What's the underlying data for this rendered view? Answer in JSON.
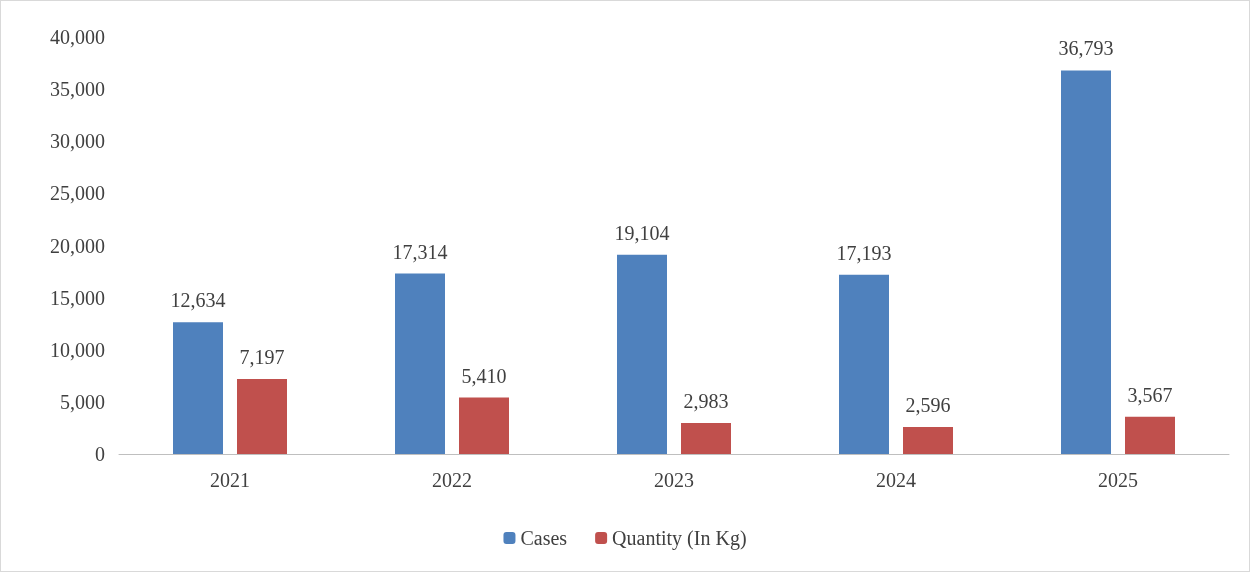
{
  "chart_data": {
    "type": "bar",
    "categories": [
      "2021",
      "2022",
      "2023",
      "2024",
      "2025"
    ],
    "series": [
      {
        "name": "Cases",
        "color": "#4f81bd",
        "values": [
          12634,
          17314,
          19104,
          17193,
          36793
        ],
        "value_labels": [
          "12,634",
          "17,314",
          "19,104",
          "17,193",
          "36,793"
        ]
      },
      {
        "name": "Quantity (In Kg)",
        "color": "#c0504d",
        "values": [
          7197,
          5410,
          2983,
          2596,
          3567
        ],
        "value_labels": [
          "7,197",
          "5,410",
          "2,983",
          "2,596",
          "3,567"
        ]
      }
    ],
    "ylim": [
      0,
      40000
    ],
    "yticks": [
      0,
      {
        "value": 5000,
        "label": "5,000"
      },
      {
        "value": 10000,
        "label": "10,000"
      },
      {
        "value": 15000,
        "label": "15,000"
      },
      {
        "value": 20000,
        "label": "20,000"
      },
      {
        "value": 25000,
        "label": "25,000"
      },
      {
        "value": 30000,
        "label": "30,000"
      },
      {
        "value": 35000,
        "label": "35,000"
      },
      {
        "value": 40000,
        "label": "40,000"
      }
    ],
    "grid": false,
    "legend": "bottom"
  }
}
